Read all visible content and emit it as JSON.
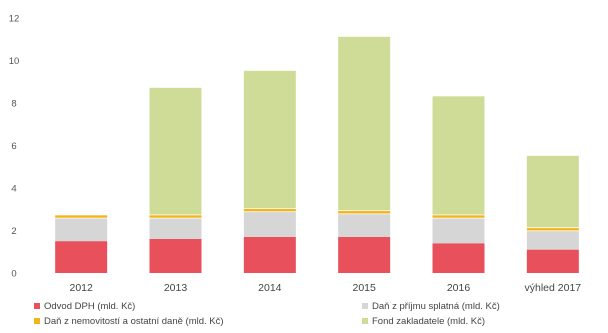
{
  "chart_data": {
    "type": "bar",
    "stacked": true,
    "categories": [
      "2012",
      "2013",
      "2014",
      "2015",
      "2016",
      "výhled 2017"
    ],
    "ylim": [
      0,
      12
    ],
    "yticks": [
      0,
      2,
      4,
      6,
      8,
      10,
      12
    ],
    "grid": false,
    "legend_position": "bottom",
    "series": [
      {
        "name": "Odvod DPH (mld. Kč)",
        "color": "#e8505b",
        "values": [
          1.5,
          1.6,
          1.7,
          1.7,
          1.4,
          1.1
        ]
      },
      {
        "name": "Daň z příjmu splatná  (mld. Kč)",
        "color": "#d6d6d6",
        "values": [
          1.1,
          1.0,
          1.2,
          1.1,
          1.2,
          0.9
        ]
      },
      {
        "name": "Daň z nemovitostí a ostatní daně (mld. Kč)",
        "color": "#f3b51c",
        "values": [
          0.15,
          0.15,
          0.15,
          0.15,
          0.15,
          0.15
        ]
      },
      {
        "name": "Fond zakladatele (mld. Kč)",
        "color": "#cfdc98",
        "values": [
          0.0,
          6.0,
          6.5,
          8.2,
          5.6,
          3.4
        ]
      }
    ],
    "legend_layout": [
      [
        0,
        1
      ],
      [
        2,
        3
      ]
    ]
  }
}
